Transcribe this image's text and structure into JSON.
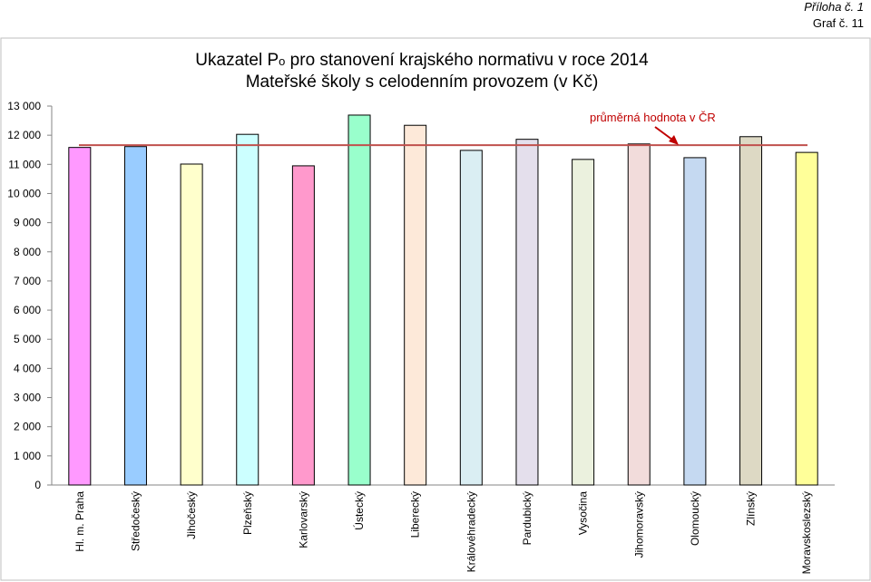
{
  "header": {
    "annex": "Příloha č. 1",
    "graph": "Graf č. 11"
  },
  "chart_data": {
    "type": "bar",
    "title_line1_pre": "Ukazatel P",
    "title_line1_sub": "o",
    "title_line1_post": " pro stanovení krajského normativu v roce 2014",
    "title_line2": "Mateřské školy s celodenním provozem (v Kč)",
    "categories": [
      "Hl. m. Praha",
      "Středočeský",
      "Jihočeský",
      "Plzeňský",
      "Karlovarský",
      "Ústecký",
      "Liberecký",
      "Královéhradecký",
      "Pardubický",
      "Vysočina",
      "Jihomoravský",
      "Olomoucký",
      "Zlínský",
      "Moravskoslezský"
    ],
    "values": [
      11580,
      11610,
      11010,
      12030,
      10950,
      12690,
      12340,
      11480,
      11860,
      11170,
      11700,
      11230,
      11950,
      11410
    ],
    "colors": [
      "#ff99ff",
      "#99ccff",
      "#ffffcc",
      "#ccffff",
      "#ff99cc",
      "#99ffcc",
      "#fde9d9",
      "#daeef3",
      "#e4dfec",
      "#ebf1de",
      "#f2dcdb",
      "#c5d9f1",
      "#ddd9c4",
      "#ffff99"
    ],
    "yticks": [
      "0",
      "1 000",
      "2 000",
      "3 000",
      "4 000",
      "5 000",
      "6 000",
      "7 000",
      "8 000",
      "9 000",
      "10 000",
      "11 000",
      "12 000",
      "13 000"
    ],
    "ylim": [
      0,
      13000
    ],
    "average_value": 11660,
    "average_color": "#c0504d",
    "average_label": "průměrná hodnota v ČR",
    "grid": false
  }
}
